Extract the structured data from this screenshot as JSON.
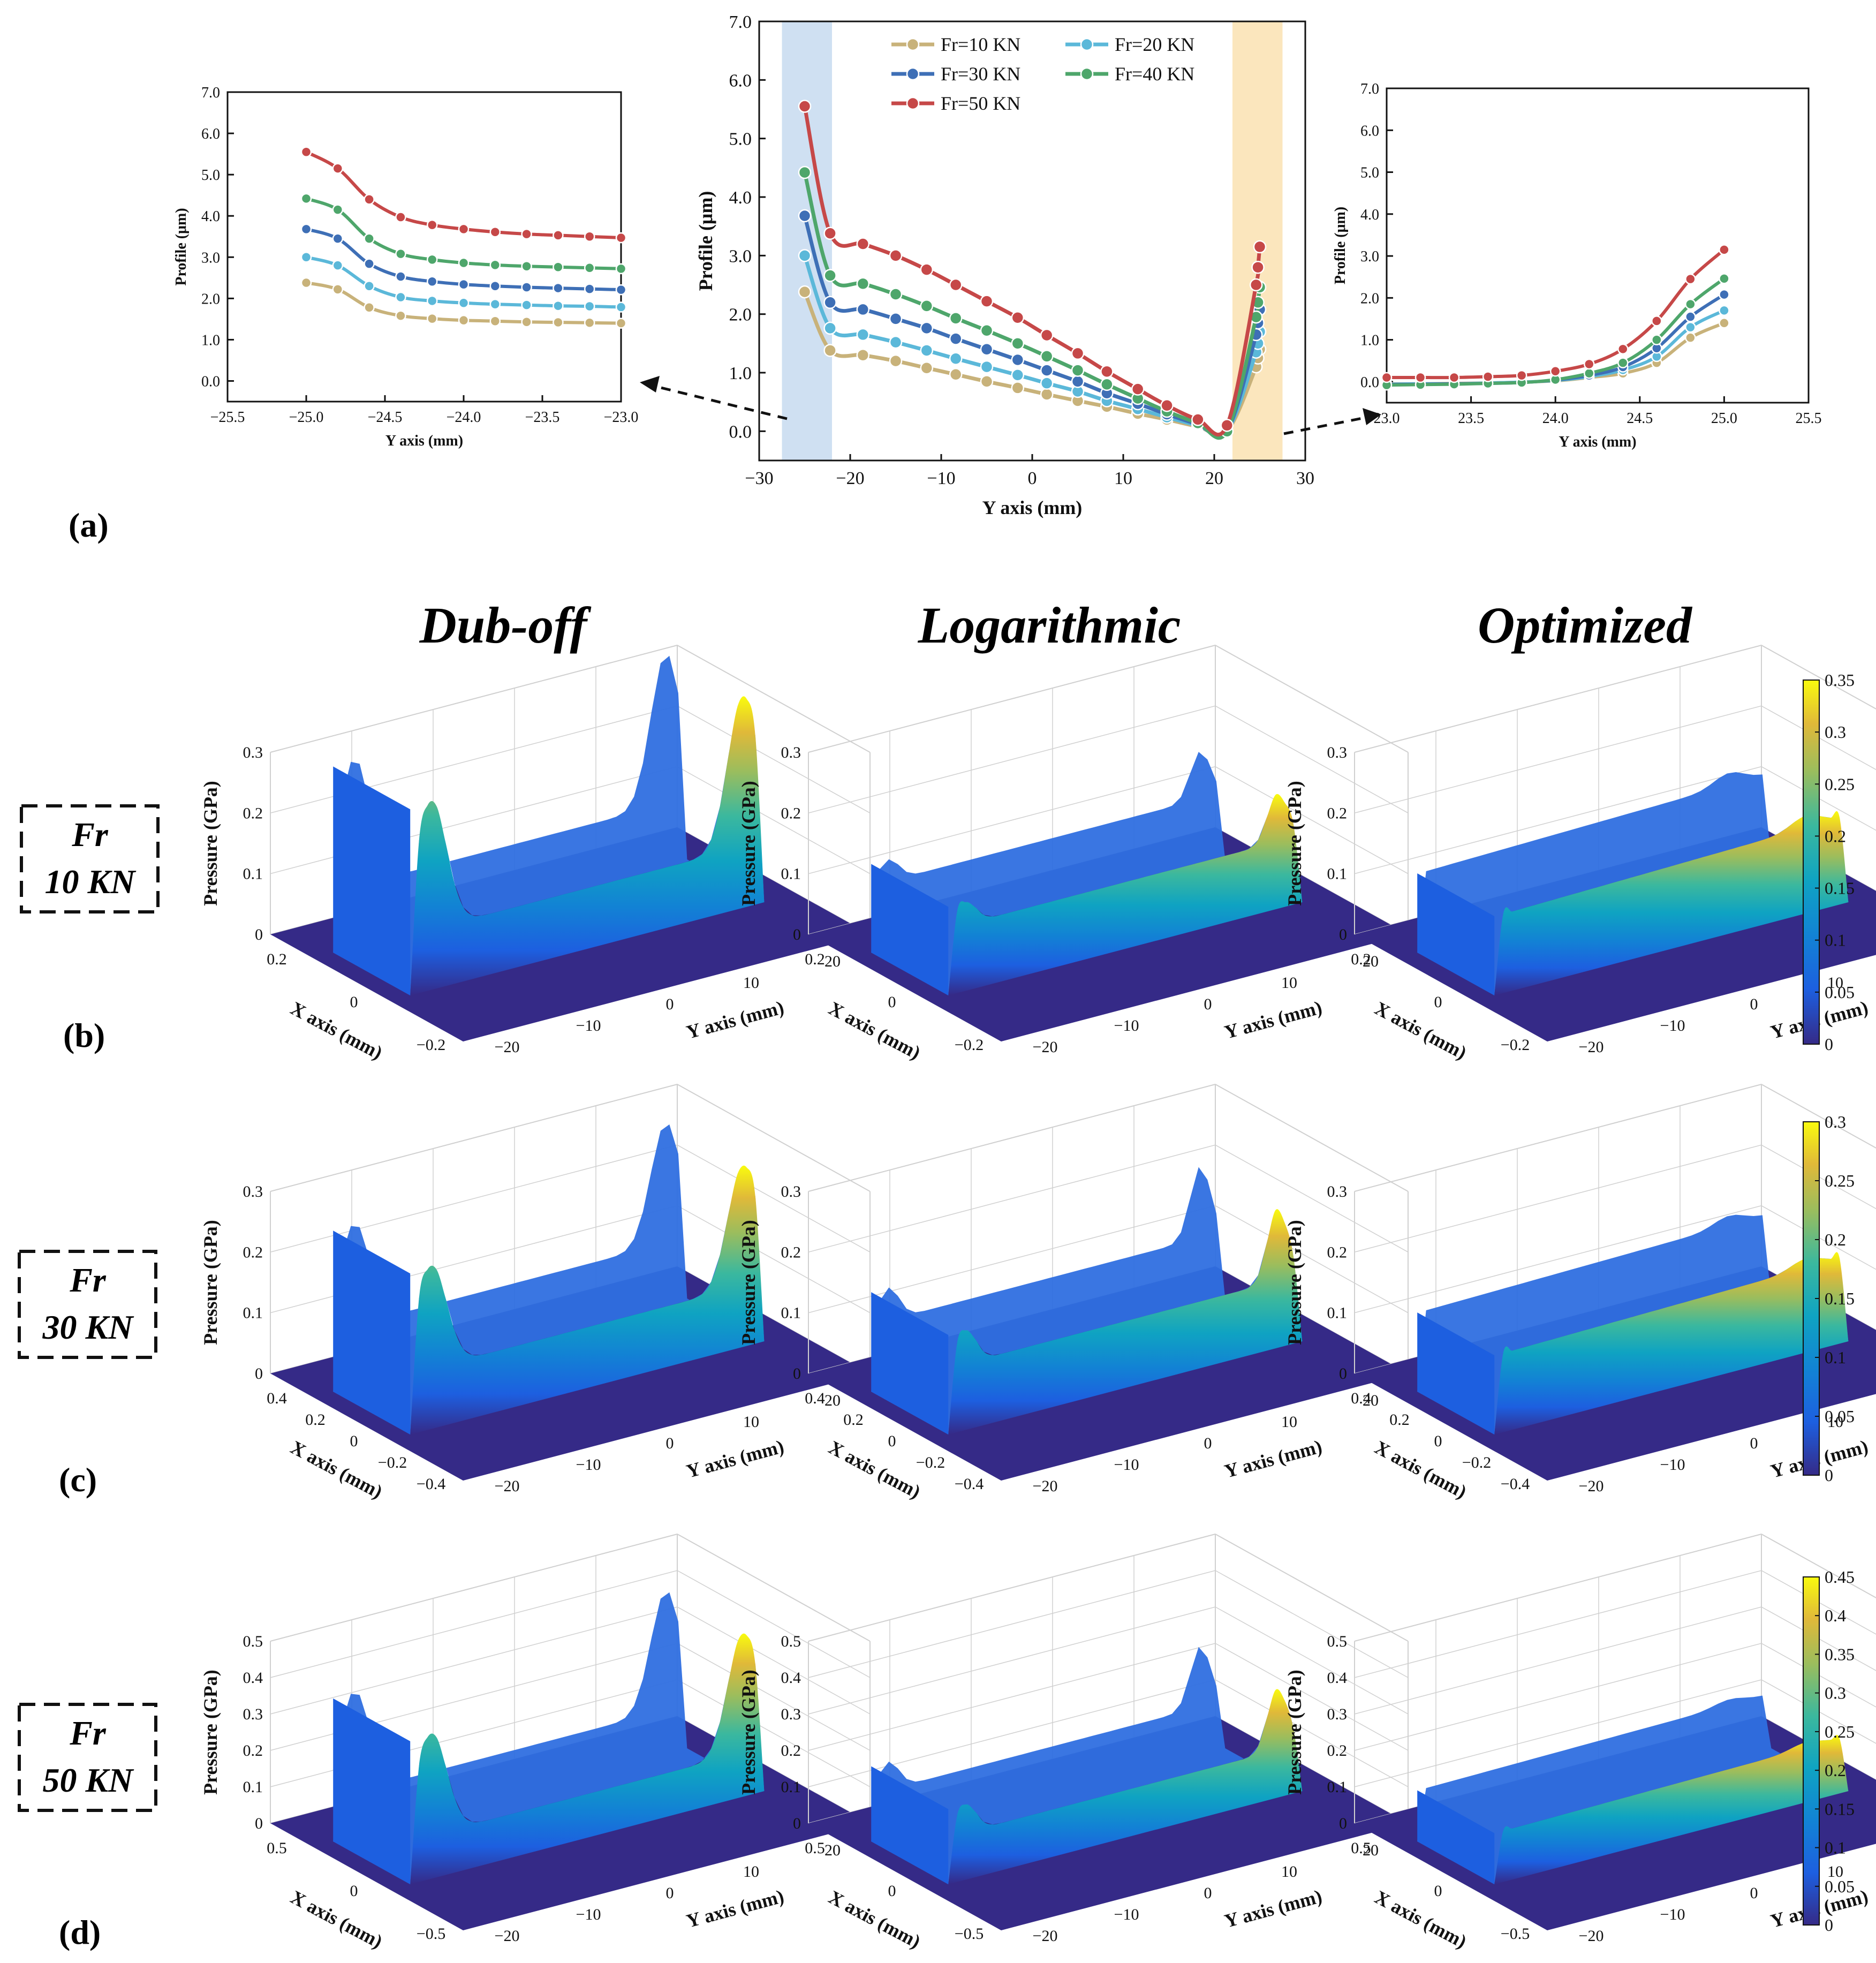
{
  "panel_labels": [
    "(a)",
    "(b)",
    "(c)",
    "(d)"
  ],
  "column_titles": [
    "Dub-off",
    "Logarithmic",
    "Optimized"
  ],
  "row_labels": [
    {
      "line1": "Fr",
      "line2": "10 KN"
    },
    {
      "line1": "Fr",
      "line2": "30 KN"
    },
    {
      "line1": "Fr",
      "line2": "50 KN"
    }
  ],
  "colors": {
    "Fr=10 KN": "#c8b27a",
    "Fr=20 KN": "#5bb8d9",
    "Fr=30 KN": "#3e6fb6",
    "Fr=40 KN": "#4ea66b",
    "Fr=50 KN": "#c64848",
    "left_band": "#cfe0f2",
    "right_band": "#fbe6bd"
  },
  "chart_data": [
    {
      "id": "main-profile",
      "type": "line",
      "title": "",
      "xlabel": "Y axis (mm)",
      "ylabel": "Profile (μm)",
      "xlim": [
        -30,
        30
      ],
      "ylim": [
        -0.5,
        7.0
      ],
      "xticks": [
        "−30",
        "−20",
        "−10",
        "0",
        "10",
        "20",
        "30"
      ],
      "yticks": [
        "0.0",
        "1.0",
        "2.0",
        "3.0",
        "4.0",
        "5.0",
        "6.0",
        "7.0"
      ],
      "legend": [
        "Fr=10 KN",
        "Fr=20 KN",
        "Fr=30 KN",
        "Fr=40 KN",
        "Fr=50 KN"
      ],
      "legend_position": "top-center",
      "highlight_bands": [
        [
          -27.5,
          -22
        ],
        [
          22,
          27.5
        ]
      ],
      "x": [
        -25,
        -22.2,
        -18.6,
        -15,
        -11.6,
        -8.4,
        -5,
        -1.6,
        1.6,
        5,
        8.2,
        11.6,
        14.8,
        18.2,
        21.4,
        24.6,
        24.8,
        25
      ],
      "series": [
        {
          "name": "Fr=10 KN",
          "values": [
            2.38,
            1.38,
            1.3,
            1.2,
            1.08,
            0.97,
            0.85,
            0.74,
            0.63,
            0.52,
            0.42,
            0.3,
            0.2,
            0.08,
            0.0,
            1.1,
            1.25,
            1.4
          ]
        },
        {
          "name": "Fr=20 KN",
          "values": [
            3.0,
            1.76,
            1.65,
            1.52,
            1.38,
            1.24,
            1.1,
            0.96,
            0.82,
            0.68,
            0.52,
            0.38,
            0.24,
            0.1,
            0.0,
            1.35,
            1.5,
            1.7
          ]
        },
        {
          "name": "Fr=30 KN",
          "values": [
            3.68,
            2.2,
            2.08,
            1.92,
            1.76,
            1.58,
            1.4,
            1.22,
            1.04,
            0.85,
            0.65,
            0.47,
            0.29,
            0.12,
            0.0,
            1.65,
            1.85,
            2.08
          ]
        },
        {
          "name": "Fr=40 KN",
          "values": [
            4.42,
            2.66,
            2.52,
            2.34,
            2.14,
            1.93,
            1.72,
            1.5,
            1.28,
            1.04,
            0.8,
            0.56,
            0.34,
            0.14,
            0.0,
            1.95,
            2.2,
            2.46
          ]
        },
        {
          "name": "Fr=50 KN",
          "values": [
            5.55,
            3.38,
            3.2,
            3.0,
            2.76,
            2.5,
            2.22,
            1.94,
            1.64,
            1.33,
            1.02,
            0.72,
            0.44,
            0.2,
            0.1,
            2.5,
            2.8,
            3.15
          ]
        }
      ]
    },
    {
      "id": "left-zoom",
      "type": "line",
      "title": "",
      "xlabel": "Y axis (mm)",
      "ylabel": "Profile (μm)",
      "xlim": [
        -25.5,
        -23.0
      ],
      "ylim": [
        -0.5,
        7.0
      ],
      "xticks": [
        "−25.5",
        "−25.0",
        "−24.5",
        "−24.0",
        "−23.5",
        "−23.0"
      ],
      "yticks": [
        "0.0",
        "1.0",
        "2.0",
        "3.0",
        "4.0",
        "5.0",
        "6.0",
        "7.0"
      ],
      "x": [
        -25.0,
        -24.8,
        -24.6,
        -24.4,
        -24.2,
        -24.0,
        -23.8,
        -23.6,
        -23.4,
        -23.2,
        -23.0
      ],
      "series": [
        {
          "name": "Fr=10 KN",
          "values": [
            2.38,
            2.22,
            1.78,
            1.58,
            1.51,
            1.47,
            1.45,
            1.43,
            1.42,
            1.41,
            1.4
          ]
        },
        {
          "name": "Fr=20 KN",
          "values": [
            3.0,
            2.8,
            2.3,
            2.03,
            1.94,
            1.89,
            1.86,
            1.84,
            1.82,
            1.81,
            1.79
          ]
        },
        {
          "name": "Fr=30 KN",
          "values": [
            3.68,
            3.45,
            2.84,
            2.53,
            2.41,
            2.34,
            2.3,
            2.27,
            2.25,
            2.23,
            2.21
          ]
        },
        {
          "name": "Fr=40 KN",
          "values": [
            4.42,
            4.15,
            3.45,
            3.08,
            2.94,
            2.86,
            2.81,
            2.78,
            2.76,
            2.74,
            2.72
          ]
        },
        {
          "name": "Fr=50 KN",
          "values": [
            5.55,
            5.15,
            4.4,
            3.97,
            3.78,
            3.68,
            3.61,
            3.56,
            3.53,
            3.5,
            3.47
          ]
        }
      ]
    },
    {
      "id": "right-zoom",
      "type": "line",
      "title": "",
      "xlabel": "Y axis (mm)",
      "ylabel": "Profile (μm)",
      "xlim": [
        23.0,
        25.5
      ],
      "ylim": [
        -0.5,
        7.0
      ],
      "xticks": [
        "23.0",
        "23.5",
        "24.0",
        "24.5",
        "25.0",
        "25.5"
      ],
      "yticks": [
        "0.0",
        "1.0",
        "2.0",
        "3.0",
        "4.0",
        "5.0",
        "6.0",
        "7.0"
      ],
      "x": [
        23.0,
        23.2,
        23.4,
        23.6,
        23.8,
        24.0,
        24.2,
        24.4,
        24.6,
        24.8,
        25.0
      ],
      "series": [
        {
          "name": "Fr=10 KN",
          "values": [
            -0.05,
            -0.05,
            -0.04,
            -0.03,
            -0.01,
            0.02,
            0.1,
            0.2,
            0.45,
            1.05,
            1.4
          ]
        },
        {
          "name": "Fr=20 KN",
          "values": [
            -0.06,
            -0.05,
            -0.05,
            -0.03,
            -0.01,
            0.03,
            0.12,
            0.28,
            0.6,
            1.3,
            1.7
          ]
        },
        {
          "name": "Fr=30 KN",
          "values": [
            -0.07,
            -0.06,
            -0.05,
            -0.04,
            -0.02,
            0.04,
            0.15,
            0.35,
            0.8,
            1.55,
            2.08
          ]
        },
        {
          "name": "Fr=40 KN",
          "values": [
            -0.08,
            -0.07,
            -0.06,
            -0.04,
            -0.02,
            0.05,
            0.2,
            0.45,
            1.0,
            1.85,
            2.46
          ]
        },
        {
          "name": "Fr=50 KN",
          "values": [
            0.1,
            0.1,
            0.1,
            0.12,
            0.15,
            0.25,
            0.42,
            0.78,
            1.45,
            2.45,
            3.15
          ]
        }
      ]
    },
    {
      "id": "pressure-surfaces",
      "type": "heatmap",
      "xlabel": "X axis (mm)",
      "ylabel": "Y axis (mm)",
      "zlabel": "Pressure (GPa)",
      "y_ticks": [
        "−20",
        "−10",
        "0",
        "10",
        "20"
      ],
      "colormap": "parula",
      "rows": [
        {
          "load": "Fr 10 KN",
          "z_ticks": [
            "0",
            "0.1",
            "0.2",
            "0.3"
          ],
          "x_ticks": [
            "0.2",
            "0",
            "−0.2"
          ],
          "colorbar_ticks": [
            "0",
            "0.05",
            "0.1",
            "0.15",
            "0.2",
            "0.25",
            "0.3",
            "0.35"
          ],
          "peak_pressure": {
            "Dub-off": 0.35,
            "Logarithmic": 0.19,
            "Optimized": 0.18
          },
          "plateau_pressure": {
            "Dub-off": 0.1,
            "Logarithmic": 0.11,
            "Optimized": 0.13
          }
        },
        {
          "load": "Fr 30 KN",
          "z_ticks": [
            "0",
            "0.1",
            "0.2",
            "0.3"
          ],
          "x_ticks": [
            "0.4",
            "0.2",
            "0",
            "−0.2",
            "−0.4"
          ],
          "colorbar_ticks": [
            "0",
            "0.05",
            "0.1",
            "0.15",
            "0.2",
            "0.25",
            "0.3"
          ],
          "peak_pressure": {
            "Dub-off": 0.3,
            "Logarithmic": 0.23,
            "Optimized": 0.17
          },
          "plateau_pressure": {
            "Dub-off": 0.1,
            "Logarithmic": 0.11,
            "Optimized": 0.13
          }
        },
        {
          "load": "Fr 50 KN",
          "z_ticks": [
            "0",
            "0.1",
            "0.2",
            "0.3",
            "0.4",
            "0.5"
          ],
          "x_ticks": [
            "0.5",
            "0",
            "−0.5"
          ],
          "colorbar_ticks": [
            "0",
            "0.05",
            "0.1",
            "0.15",
            "0.2",
            "0.25",
            "0.3",
            "0.35",
            "0.4",
            "0.45"
          ],
          "peak_pressure": {
            "Dub-off": 0.45,
            "Logarithmic": 0.3,
            "Optimized": 0.18
          },
          "plateau_pressure": {
            "Dub-off": 0.12,
            "Logarithmic": 0.13,
            "Optimized": 0.14
          }
        }
      ]
    }
  ]
}
